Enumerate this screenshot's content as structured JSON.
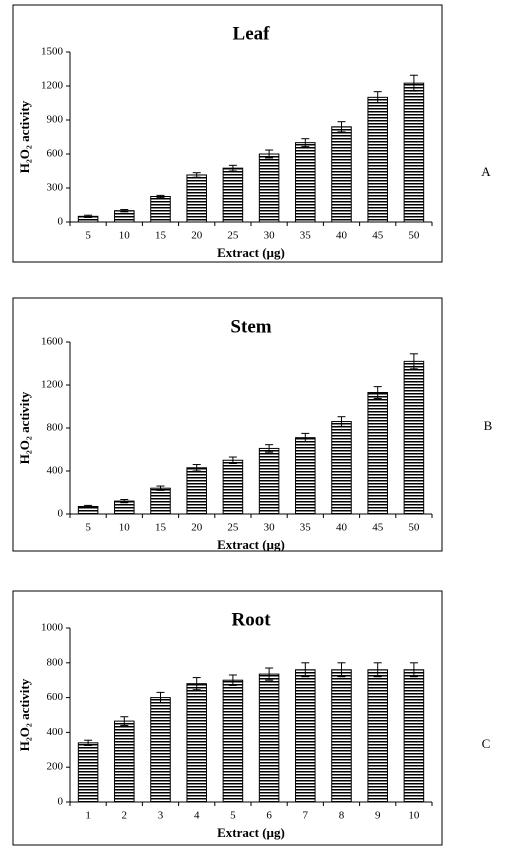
{
  "chart_data": [
    {
      "type": "bar",
      "title": "Leaf",
      "panel_label": "A",
      "x_label": "Extract (µg)",
      "y_label": "H₂O₂ activity",
      "categories": [
        "5",
        "10",
        "15",
        "20",
        "25",
        "30",
        "35",
        "40",
        "45",
        "50"
      ],
      "values": [
        50,
        100,
        225,
        415,
        475,
        600,
        700,
        840,
        1100,
        1225
      ],
      "errors": [
        10,
        10,
        10,
        20,
        25,
        35,
        35,
        45,
        50,
        70
      ],
      "ylim": [
        0,
        1500
      ],
      "yticks": [
        0,
        300,
        600,
        900,
        1200,
        1500
      ],
      "color": "#000000"
    },
    {
      "type": "bar",
      "title": "Stem",
      "panel_label": "B",
      "x_label": "Extract (µg)",
      "y_label": "H₂O₂ activity",
      "categories": [
        "5",
        "10",
        "15",
        "20",
        "25",
        "30",
        "35",
        "40",
        "45",
        "50"
      ],
      "values": [
        70,
        120,
        240,
        430,
        500,
        610,
        710,
        860,
        1130,
        1420
      ],
      "errors": [
        10,
        15,
        20,
        30,
        30,
        35,
        40,
        45,
        55,
        70
      ],
      "ylim": [
        0,
        1600
      ],
      "yticks": [
        0,
        400,
        800,
        1200,
        1600
      ],
      "color": "#000000"
    },
    {
      "type": "bar",
      "title": "Root",
      "panel_label": "C",
      "x_label": "Extract (µg)",
      "y_label": "H₂O₂ activity",
      "categories": [
        "1",
        "2",
        "3",
        "4",
        "5",
        "6",
        "7",
        "8",
        "9",
        "10"
      ],
      "values": [
        340,
        465,
        600,
        680,
        700,
        735,
        760,
        760,
        760,
        760
      ],
      "errors": [
        15,
        25,
        30,
        35,
        30,
        35,
        40,
        40,
        40,
        40
      ],
      "ylim": [
        0,
        1000
      ],
      "yticks": [
        0,
        200,
        400,
        600,
        800,
        1000
      ],
      "color": "#000000"
    }
  ]
}
